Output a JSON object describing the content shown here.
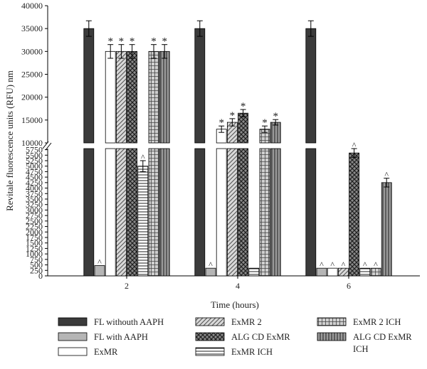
{
  "chart_data": {
    "type": "bar",
    "xlabel": "Time (hours)",
    "ylabel": "Revitale fluorescence units (RFU) nm",
    "categories": [
      "2",
      "4",
      "6"
    ],
    "y_axis_break": [
      5800,
      10000
    ],
    "ylim": [
      0,
      40000
    ],
    "y_ticks_lower": [
      "0",
      "250",
      "500",
      "750",
      "1000",
      "1250",
      "1500",
      "1750",
      "2000",
      "2250",
      "2500",
      "2750",
      "3000",
      "3250",
      "3500",
      "3750",
      "4000",
      "4250",
      "4500",
      "4750",
      "5000",
      "5250",
      "5500",
      "5750"
    ],
    "y_ticks_upper": [
      "10000",
      "15000",
      "20000",
      "25000",
      "30000",
      "35000",
      "40000"
    ],
    "legend_placement": "bottom",
    "series": [
      {
        "name": "FL withouth AAPH",
        "fill": "dark",
        "values": [
          35000,
          35000,
          35000
        ],
        "errors": [
          1700,
          1700,
          1700
        ],
        "marks": [
          "",
          "",
          ""
        ]
      },
      {
        "name": "FL with AAPH",
        "fill": "light-gray",
        "values": [
          470,
          350,
          350
        ],
        "errors": [
          0,
          0,
          0
        ],
        "marks": [
          "^",
          "^",
          "^"
        ]
      },
      {
        "name": "ExMR",
        "fill": "white",
        "values": [
          30000,
          13000,
          350
        ],
        "errors": [
          1500,
          700,
          0
        ],
        "marks": [
          "*",
          "*",
          "^"
        ]
      },
      {
        "name": "ExMR 2",
        "fill": "diagonal",
        "values": [
          30000,
          14500,
          350
        ],
        "errors": [
          1500,
          800,
          0
        ],
        "marks": [
          "*",
          "*",
          "^"
        ]
      },
      {
        "name": "ALG CD ExMR",
        "fill": "crosshatch",
        "values": [
          30000,
          16500,
          5600
        ],
        "errors": [
          1500,
          800,
          200
        ],
        "marks": [
          "*",
          "*",
          "^"
        ]
      },
      {
        "name": "ExMR ICH",
        "fill": "horizontal",
        "values": [
          5000,
          350,
          350
        ],
        "errors": [
          250,
          0,
          0
        ],
        "marks": [
          "^",
          "",
          "^"
        ]
      },
      {
        "name": "ExMR 2 ICH",
        "fill": "grid",
        "values": [
          30000,
          13000,
          350
        ],
        "errors": [
          1500,
          700,
          0
        ],
        "marks": [
          "*",
          "*",
          "^"
        ]
      },
      {
        "name": "ALG CD ExMR ICH",
        "fill": "vertical",
        "values": [
          30000,
          14500,
          4250
        ],
        "errors": [
          1500,
          600,
          200
        ],
        "marks": [
          "*",
          "*",
          "^"
        ]
      }
    ],
    "colors": {
      "dark": "#3b3b3b",
      "light_gray": "#b5b5b5",
      "hatch_line": "#333333",
      "hatch_bg": "#a6a6a6"
    }
  }
}
